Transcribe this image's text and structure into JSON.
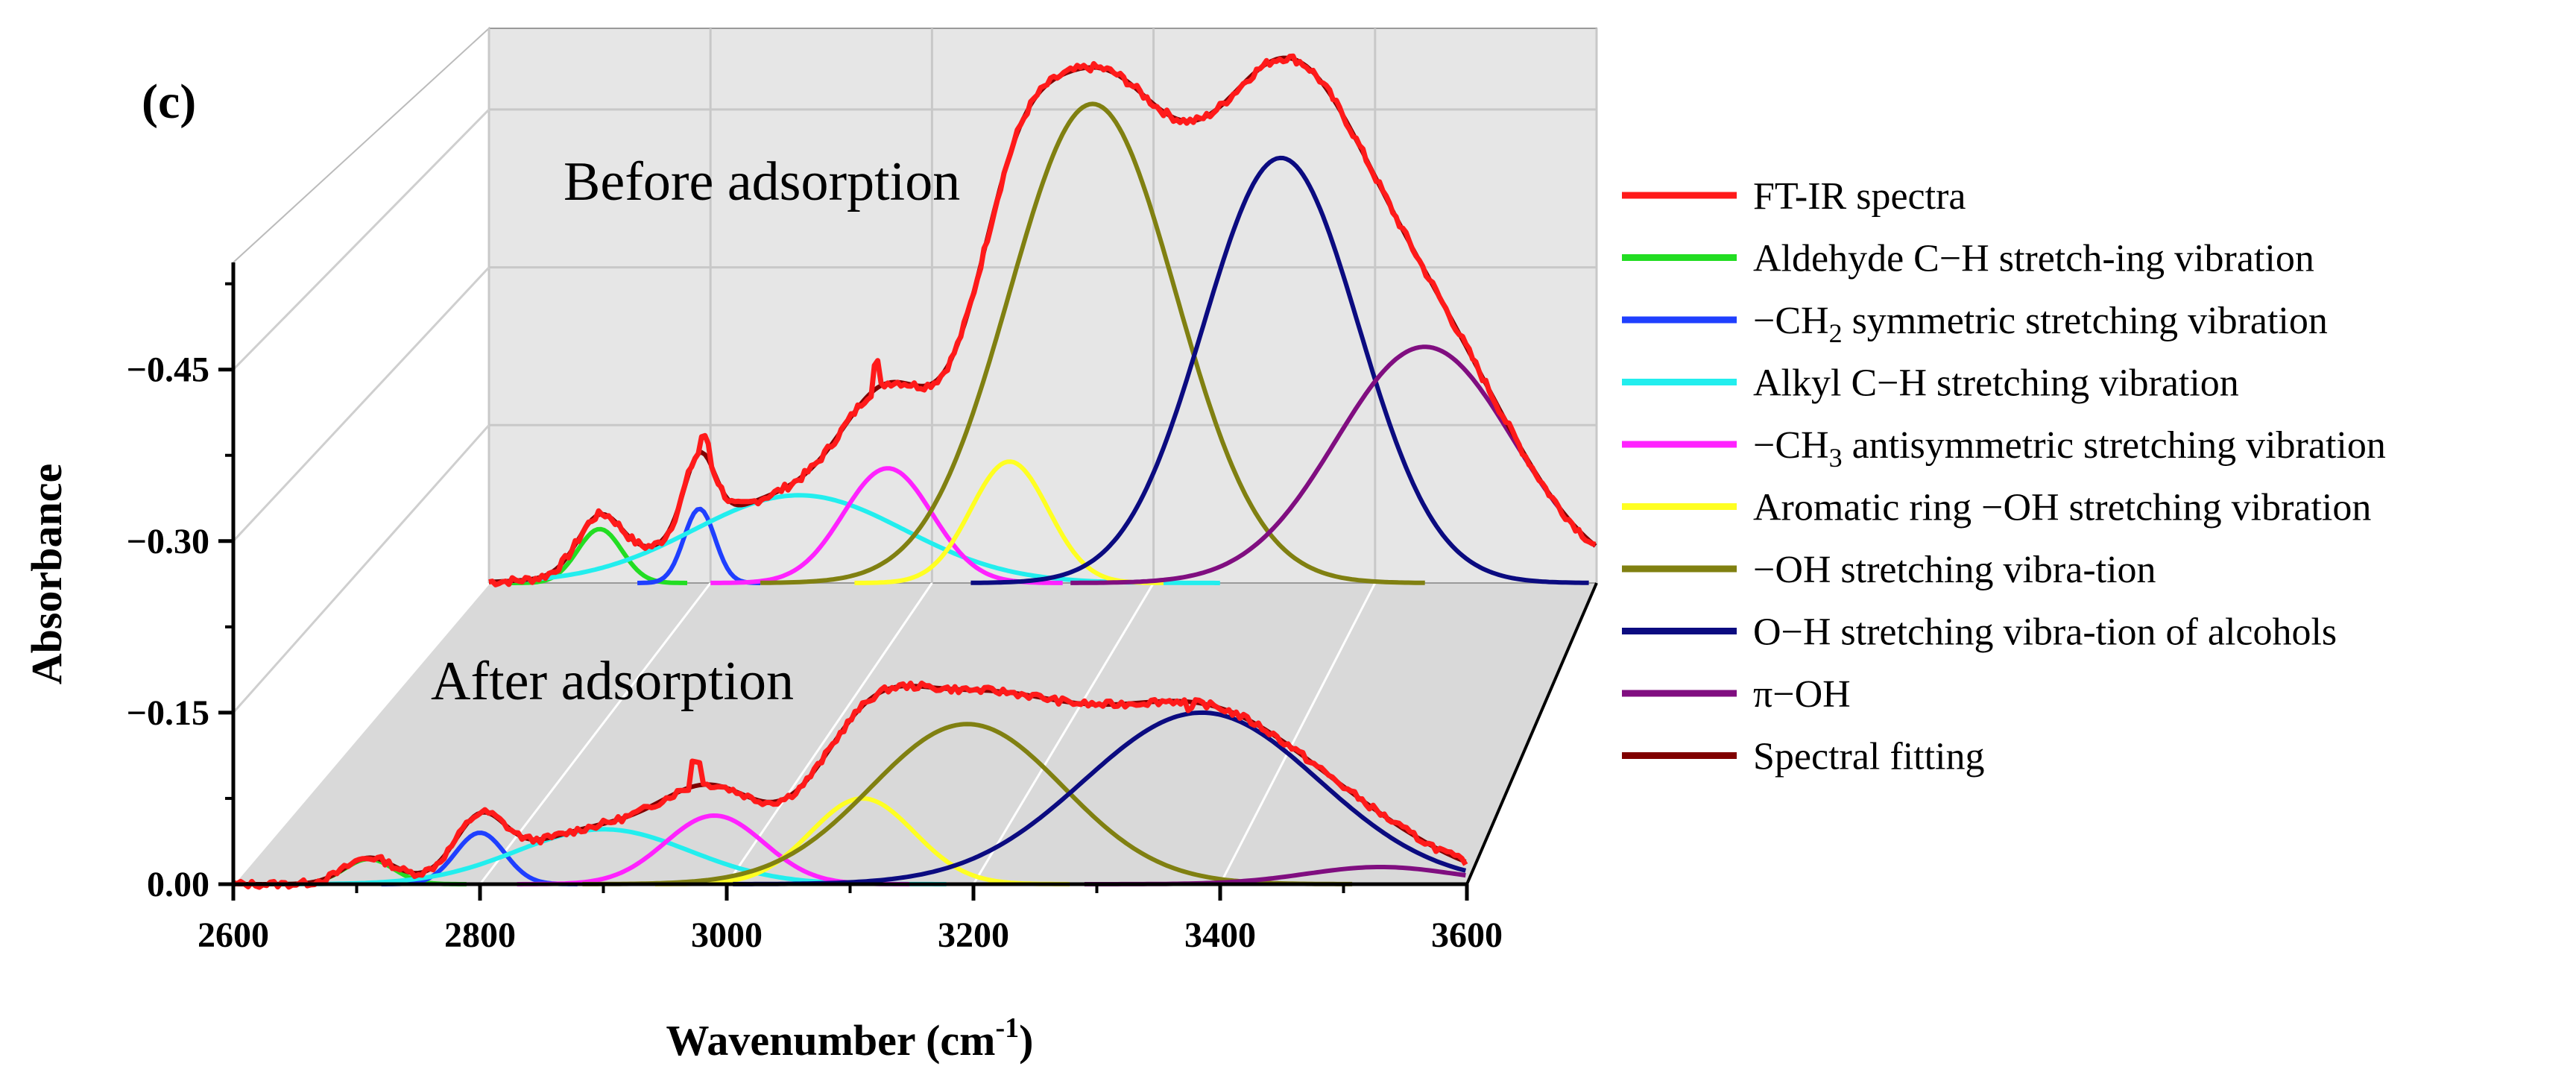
{
  "chart_data": {
    "type": "line",
    "panel_label": "(c)",
    "xlabel": "Wavenumber (cm",
    "xlabel_sup": "-1",
    "xlabel_close": ")",
    "ylabel": "Absorbance",
    "xlim": [
      2600,
      3600
    ],
    "ylim": [
      0.0,
      -0.55
    ],
    "x_ticks": [
      2600,
      2800,
      3000,
      3200,
      3400,
      3600
    ],
    "x_tick_labels": [
      "2600",
      "2800",
      "3000",
      "3200",
      "3400",
      "3600"
    ],
    "y_ticks": [
      0,
      -0.15,
      -0.3,
      -0.45
    ],
    "y_tick_labels": [
      "0.00",
      "−0.15",
      "−0.30",
      "−0.45"
    ],
    "annotations": {
      "before": "Before adsorption",
      "after": "After adsorption"
    },
    "legend": [
      {
        "name": "FT-IR spectra",
        "color": "#ff1a1a"
      },
      {
        "name": "Aldehyde C−H stretch-ing vibration",
        "color": "#22dd22"
      },
      {
        "name": "−CH",
        "sub": "2",
        "rest": " symmetric stretching vibration",
        "color": "#1f3fff"
      },
      {
        "name": "Alkyl C−H stretching vibration",
        "color": "#22eeee"
      },
      {
        "name": "−CH",
        "sub": "3",
        "rest": " antisymmetric stretching vibration",
        "color": "#ff22ff"
      },
      {
        "name": "Aromatic ring −OH stretching vibration",
        "color": "#ffff22"
      },
      {
        "name": "−OH stretching vibra-tion",
        "color": "#808011"
      },
      {
        "name": "O−H stretching vibra-tion of alcohols",
        "color": "#0b0b80"
      },
      {
        "name": "π−OH",
        "color": "#800e80"
      },
      {
        "name": "Spectral fitting",
        "color": "#800000"
      }
    ],
    "series": [
      {
        "name": "Aldehyde C−H stretch-ing vibration",
        "color": "#22dd22",
        "before": {
          "center": 2700,
          "amp": 0.04,
          "sigma": 20
        },
        "after": {
          "center": 2710,
          "amp": 0.022,
          "sigma": 20
        }
      },
      {
        "name": "−CH2 symmetric stretching vibration",
        "color": "#1f3fff",
        "before": {
          "center": 2790,
          "amp": 0.055,
          "sigma": 14
        },
        "after": {
          "center": 2800,
          "amp": 0.045,
          "sigma": 20
        }
      },
      {
        "name": "Alkyl C−H stretching vibration",
        "color": "#22eeee",
        "before": {
          "center": 2880,
          "amp": 0.065,
          "sigma": 95
        },
        "after": {
          "center": 2900,
          "amp": 0.048,
          "sigma": 70
        }
      },
      {
        "name": "−CH3 antisymmetric stretching vibration",
        "color": "#ff22ff",
        "before": {
          "center": 2960,
          "amp": 0.085,
          "sigma": 40
        },
        "after": {
          "center": 2990,
          "amp": 0.06,
          "sigma": 40
        }
      },
      {
        "name": "Aromatic ring −OH stretching vibration",
        "color": "#ffff22",
        "before": {
          "center": 3070,
          "amp": 0.09,
          "sigma": 35
        },
        "after": {
          "center": 3110,
          "amp": 0.075,
          "sigma": 42
        }
      },
      {
        "name": "−OH stretching vibra-tion",
        "color": "#808011",
        "before": {
          "center": 3145,
          "amp": 0.355,
          "sigma": 75
        },
        "after": {
          "center": 3195,
          "amp": 0.14,
          "sigma": 78
        }
      },
      {
        "name": "O−H stretching vibra-tion of alcohols",
        "color": "#0b0b80",
        "before": {
          "center": 3315,
          "amp": 0.315,
          "sigma": 70
        },
        "after": {
          "center": 3385,
          "amp": 0.15,
          "sigma": 95
        }
      },
      {
        "name": "π−OH",
        "color": "#800e80",
        "before": {
          "center": 3445,
          "amp": 0.175,
          "sigma": 80
        },
        "after": {
          "center": 3530,
          "amp": 0.015,
          "sigma": 60
        }
      }
    ],
    "fit_color": "#800000",
    "spectra_color": "#ff1a1a",
    "spectra_spikes": {
      "before": [
        {
          "x": 2950,
          "dy": 0.018
        },
        {
          "x": 2795,
          "dy": 0.012
        }
      ],
      "after": [
        {
          "x": 2975,
          "dy": 0.022
        },
        {
          "x": 3375,
          "dy": -0.008
        }
      ]
    }
  }
}
